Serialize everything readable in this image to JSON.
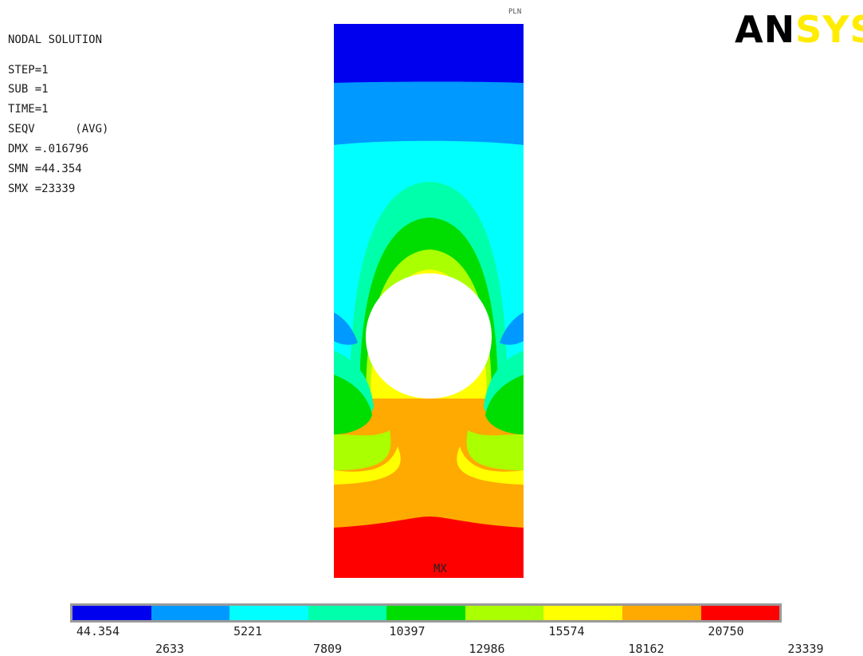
{
  "info": {
    "title": "NODAL SOLUTION",
    "lines": [
      "STEP=1",
      "SUB =1",
      "TIME=1",
      "SEQV      (AVG)",
      "DMX =.016796",
      "SMN =44.354",
      "SMX =23339"
    ]
  },
  "plot_tag": "PLN",
  "logo": {
    "part1": "AN",
    "part2": "SYS"
  },
  "max_marker": "MX",
  "colors": {
    "band1": "#0000ee",
    "band2": "#0099ff",
    "band3": "#00ffff",
    "band4": "#00ffaa",
    "band5": "#00dd00",
    "band6": "#aaff00",
    "band7": "#ffff00",
    "band8": "#ffaa00",
    "band9": "#ff0000"
  },
  "legend": {
    "swatches": [
      "#0000ee",
      "#0099ff",
      "#00ffff",
      "#00ffaa",
      "#00dd00",
      "#aaff00",
      "#ffff00",
      "#ffaa00",
      "#ff0000"
    ],
    "ticks": [
      "44.354",
      "2633",
      "5221",
      "7809",
      "10397",
      "12986",
      "15574",
      "18162",
      "20750",
      "23339"
    ]
  }
}
